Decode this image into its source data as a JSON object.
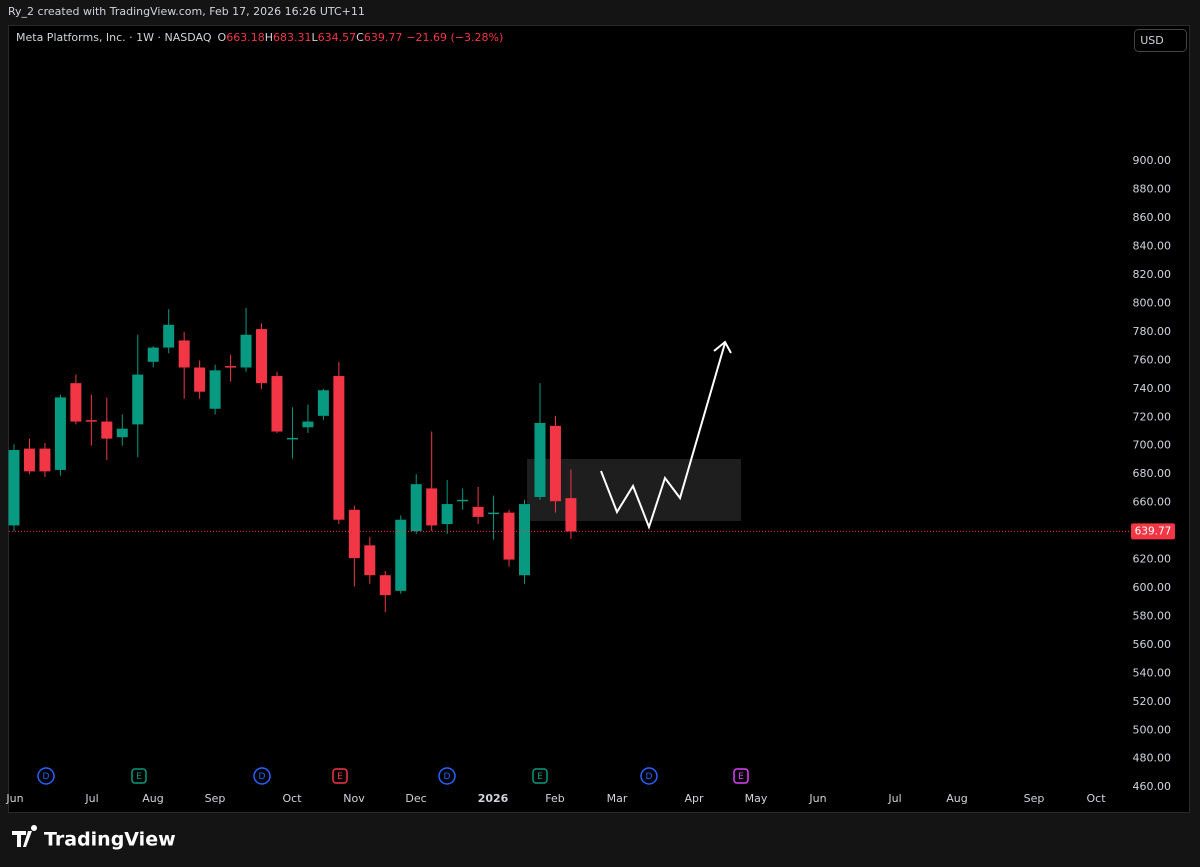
{
  "header": {
    "credit": "Ry_2 created with TradingView.com, Feb 17, 2026 16:26 UTC+11",
    "currency": "USD",
    "brand": "TradingView"
  },
  "chart_data": {
    "type": "candlestick",
    "title": "Meta Platforms, Inc. · 1W · NASDAQ",
    "ohlc_legend": [
      {
        "key": "O",
        "text": "663.18"
      },
      {
        "key": "H",
        "text": "683.31"
      },
      {
        "key": "L",
        "text": "634.57"
      },
      {
        "key": "C",
        "text": "639.77"
      }
    ],
    "change": "−21.69 (−3.28%)",
    "up_color": "#089981",
    "down_color": "#f23645",
    "open": [
      644,
      698,
      698,
      683,
      744,
      718,
      717,
      706,
      715,
      759,
      769,
      774,
      755,
      726,
      756,
      755,
      782,
      749,
      705,
      713,
      721,
      749,
      655,
      630,
      609,
      598,
      640,
      670,
      645,
      661,
      657,
      652,
      653,
      609,
      664,
      714,
      663.18
    ],
    "high": [
      701,
      705,
      702,
      736,
      750,
      736,
      734,
      722,
      778,
      770,
      796,
      780,
      760,
      757,
      764,
      797,
      786,
      752,
      727,
      729,
      740,
      759,
      658,
      636,
      612,
      651,
      680,
      710,
      676,
      670,
      671,
      665,
      655,
      662,
      744,
      721,
      683.31
    ],
    "low": [
      640,
      680,
      678,
      679,
      715,
      700,
      690,
      700,
      692,
      755,
      765,
      733,
      733,
      722,
      745,
      752,
      740,
      709,
      691,
      709,
      718,
      645,
      601,
      603,
      583,
      596,
      638,
      640,
      638,
      655,
      645,
      634,
      615,
      603,
      662,
      653,
      634.57
    ],
    "close": [
      697,
      682,
      682,
      734,
      717,
      717,
      705,
      712,
      750,
      769,
      785,
      755,
      738,
      753,
      755,
      778,
      744,
      710,
      705.5,
      717,
      739,
      648,
      621,
      609,
      595,
      648,
      673,
      644,
      659,
      662,
      650,
      653,
      620,
      659,
      716,
      661,
      639.77
    ],
    "ylim": [
      442.57,
      995.73
    ],
    "yticks": [
      {
        "value": 900,
        "label": "900.00"
      },
      {
        "value": 880,
        "label": "880.00"
      },
      {
        "value": 860,
        "label": "860.00"
      },
      {
        "value": 840,
        "label": "840.00"
      },
      {
        "value": 820,
        "label": "820.00"
      },
      {
        "value": 800,
        "label": "800.00"
      },
      {
        "value": 780,
        "label": "780.00"
      },
      {
        "value": 760,
        "label": "760.00"
      },
      {
        "value": 740,
        "label": "740.00"
      },
      {
        "value": 720,
        "label": "720.00"
      },
      {
        "value": 700,
        "label": "700.00"
      },
      {
        "value": 680,
        "label": "680.00"
      },
      {
        "value": 660,
        "label": "660.00"
      },
      {
        "value": 640,
        "label": "640.00"
      },
      {
        "value": 620,
        "label": "620.00"
      },
      {
        "value": 600,
        "label": "600.00"
      },
      {
        "value": 580,
        "label": "580.00"
      },
      {
        "value": 560,
        "label": "560.00"
      },
      {
        "value": 540,
        "label": "540.00"
      },
      {
        "value": 520,
        "label": "520.00"
      },
      {
        "value": 500,
        "label": "500.00"
      },
      {
        "value": 480,
        "label": "480.00"
      },
      {
        "value": 460,
        "label": "460.00"
      }
    ],
    "x_labels": [
      "Jun",
      "Jul",
      "Aug",
      "Sep",
      "Oct",
      "Nov",
      "Dec",
      "2026",
      "Feb",
      "Mar",
      "Apr",
      "May",
      "Jun",
      "Jul",
      "Aug",
      "Sep",
      "Oct"
    ],
    "events": [
      {
        "label": "D",
        "color": "#2962ff"
      },
      {
        "label": "E",
        "color": "#089981"
      },
      {
        "label": "D",
        "color": "#2962ff"
      },
      {
        "label": "E",
        "color": "#f23645"
      },
      {
        "label": "D",
        "color": "#2962ff"
      },
      {
        "label": "E",
        "color": "#089981"
      },
      {
        "label": "D",
        "color": "#2962ff"
      },
      {
        "label": "E",
        "color": "#e040fb"
      }
    ]
  }
}
